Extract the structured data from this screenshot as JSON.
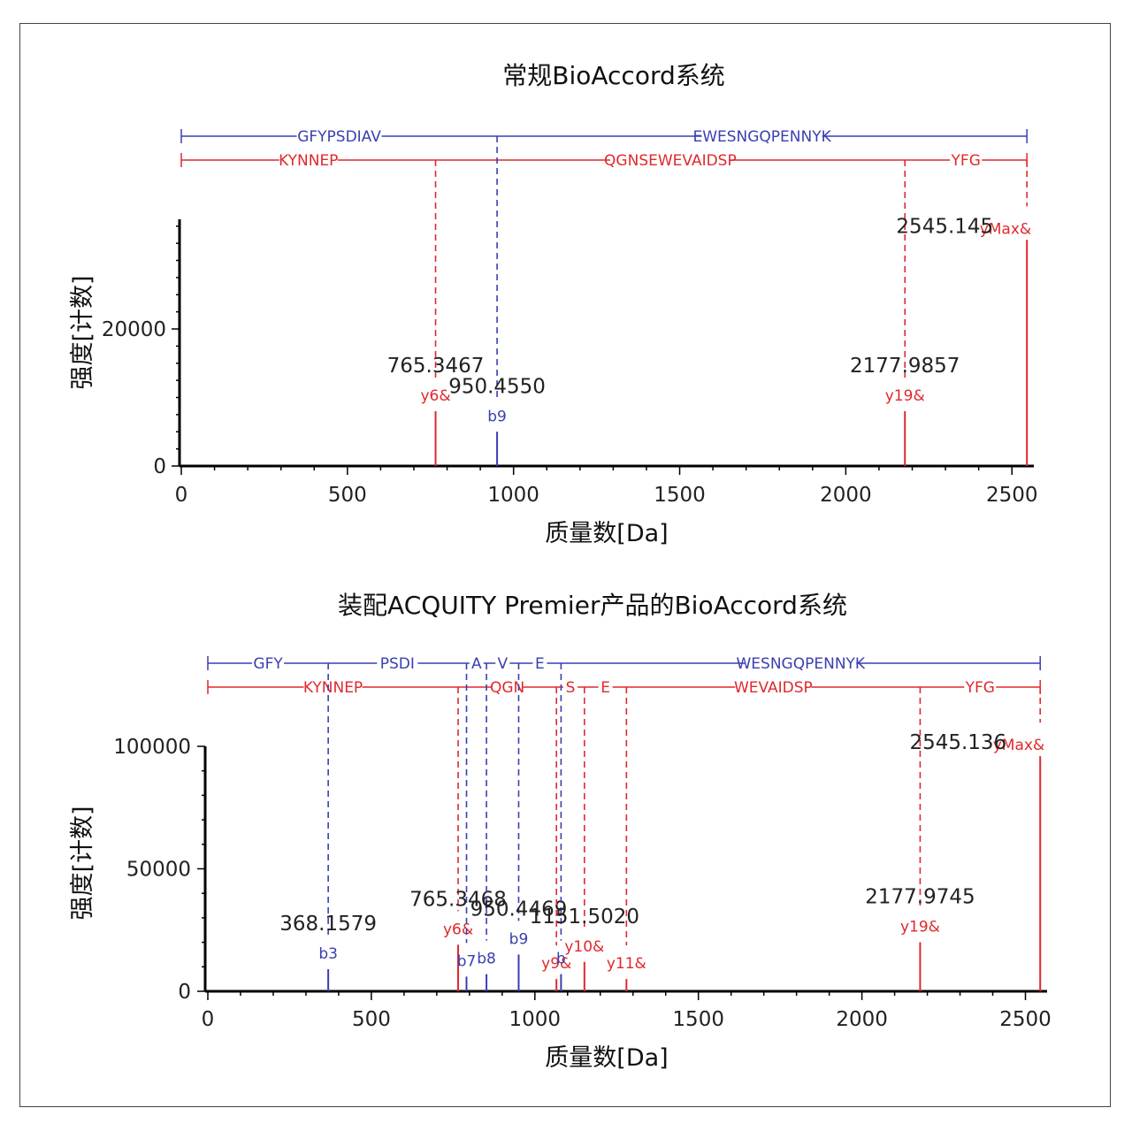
{
  "colors": {
    "b_ion": "#3a3fb0",
    "y_ion": "#e0282c",
    "axis": "#000000",
    "text": "#222222",
    "marker": "#3a9a8a"
  },
  "chart_data": [
    {
      "type": "bar",
      "title": "常规BioAccord系统",
      "xlabel": "质量数[Da]",
      "ylabel": "强度[计数]",
      "xlim": [
        0,
        2550
      ],
      "ylim": [
        0,
        36000
      ],
      "x_ticks": [
        0,
        500,
        1000,
        1500,
        2000,
        2500
      ],
      "y_ticks": [
        0,
        20000
      ],
      "b_ladder": [
        {
          "label": "GFYPSDIAV",
          "from": 0,
          "to": 950.455
        },
        {
          "label": "EWESNGQPENNYK",
          "from": 950.455,
          "to": 2545.145
        }
      ],
      "y_ladder": [
        {
          "label": "KYNNEP",
          "from": 0,
          "to": 765.3467
        },
        {
          "label": "QGNSEWEVAIDSP",
          "from": 765.3467,
          "to": 2177.9857
        },
        {
          "label": "YFG",
          "from": 2177.9857,
          "to": 2545.145
        }
      ],
      "peaks": [
        {
          "mz": 765.3467,
          "intensity": 8000,
          "label": "765.3467",
          "ion": "y6&",
          "kind": "y"
        },
        {
          "mz": 950.455,
          "intensity": 5000,
          "label": "950.4550",
          "ion": "b9",
          "kind": "b"
        },
        {
          "mz": 2177.9857,
          "intensity": 8000,
          "label": "2177.9857",
          "ion": "y19&",
          "kind": "y"
        },
        {
          "mz": 2545.145,
          "intensity": 33000,
          "label": "2545.145",
          "ion": "yMax&",
          "kind": "y"
        }
      ]
    },
    {
      "type": "bar",
      "title": "装配ACQUITY Premier产品的BioAccord系统",
      "xlabel": "质量数[Da]",
      "ylabel": "强度[计数]",
      "xlim": [
        0,
        2550
      ],
      "ylim": [
        0,
        100000
      ],
      "x_ticks": [
        0,
        500,
        1000,
        1500,
        2000,
        2500
      ],
      "y_ticks": [
        0,
        50000,
        100000
      ],
      "b_ladder": [
        {
          "label": "GFY",
          "from": 0,
          "to": 368.1579
        },
        {
          "label": "PSDI",
          "from": 368.1579,
          "to": 791
        },
        {
          "label": "A",
          "from": 791,
          "to": 852
        },
        {
          "label": "V",
          "from": 852,
          "to": 950.4469
        },
        {
          "label": "E",
          "from": 950.4469,
          "to": 1080
        },
        {
          "label": "WESNGQPENNYK",
          "from": 1080,
          "to": 2545.136
        }
      ],
      "y_ladder": [
        {
          "label": "KYNNEP",
          "from": 0,
          "to": 765.3468
        },
        {
          "label": "QGN",
          "from": 765.3468,
          "to": 1066
        },
        {
          "label": "S",
          "from": 1066,
          "to": 1151.502
        },
        {
          "label": "E",
          "from": 1151.502,
          "to": 1280
        },
        {
          "label": "WEVAIDSP",
          "from": 1280,
          "to": 2177.9745
        },
        {
          "label": "YFG",
          "from": 2177.9745,
          "to": 2545.136
        }
      ],
      "peaks": [
        {
          "mz": 368.1579,
          "intensity": 9000,
          "label": "368.1579",
          "ion": "b3",
          "kind": "b"
        },
        {
          "mz": 765.3468,
          "intensity": 19000,
          "label": "765.3468",
          "ion": "y6&",
          "kind": "y"
        },
        {
          "mz": 791,
          "intensity": 6000,
          "label": "",
          "ion": "b7",
          "kind": "b"
        },
        {
          "mz": 852,
          "intensity": 7000,
          "label": "",
          "ion": "b8",
          "kind": "b"
        },
        {
          "mz": 950.4469,
          "intensity": 15000,
          "label": "950.4469",
          "ion": "b9",
          "kind": "b"
        },
        {
          "mz": 1066,
          "intensity": 5000,
          "label": "",
          "ion": "y9&",
          "kind": "y"
        },
        {
          "mz": 1080,
          "intensity": 7000,
          "label": "",
          "ion": "b",
          "kind": "b"
        },
        {
          "mz": 1151.502,
          "intensity": 12000,
          "label": "1151.5020",
          "ion": "y10&",
          "kind": "y"
        },
        {
          "mz": 1280,
          "intensity": 5000,
          "label": "",
          "ion": "y11&",
          "kind": "y"
        },
        {
          "mz": 2177.9745,
          "intensity": 20000,
          "label": "2177.9745",
          "ion": "y19&",
          "kind": "y"
        },
        {
          "mz": 2545.136,
          "intensity": 96000,
          "label": "2545.136",
          "ion": "yMax&",
          "kind": "y"
        }
      ]
    }
  ]
}
